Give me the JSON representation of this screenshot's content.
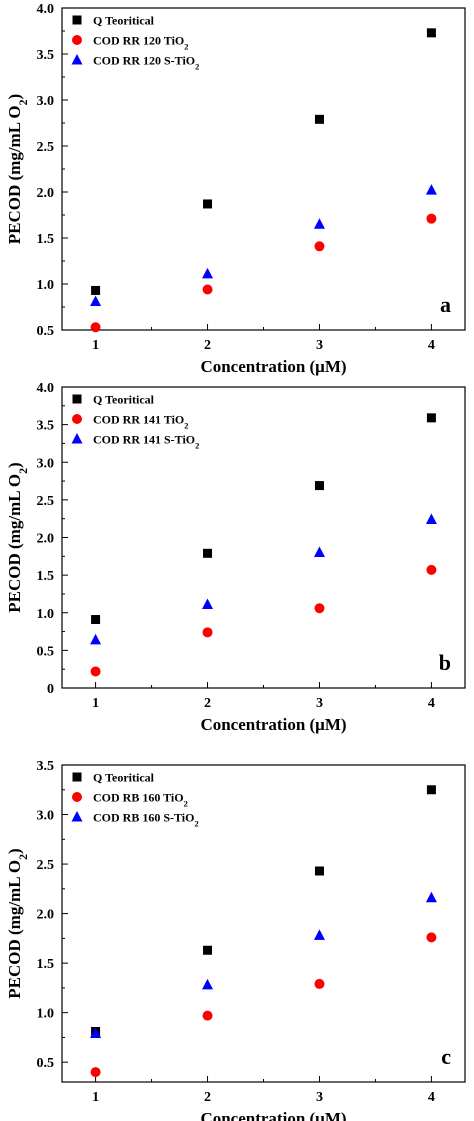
{
  "colors": {
    "q_teoritical": "#000000",
    "cod_tio2": "#ff0000",
    "cod_s_tio2": "#0000ff",
    "axes": "#000000"
  },
  "markers": {
    "q_teoritical": "square",
    "cod_tio2": "circle",
    "cod_s_tio2": "triangle"
  },
  "chart_data": [
    {
      "type": "scatter",
      "panel_label": "a",
      "xlabel": "Concentration (μM)",
      "ylabel": {
        "main": "PECOD (mg/mL O",
        "sub": "2",
        "tail": ")"
      },
      "xlim": [
        0.7,
        4.3
      ],
      "ylim": [
        0.5,
        4.0
      ],
      "xticks": [
        1,
        2,
        3,
        4
      ],
      "yticks": [
        0.5,
        1.0,
        1.5,
        2.0,
        2.5,
        3.0,
        3.5,
        4.0
      ],
      "ytick_labels": [
        "0.5",
        "1.0",
        "1.5",
        "2.0",
        "2.5",
        "3.0",
        "3.5",
        "4.0"
      ],
      "x": [
        1,
        2,
        3,
        4
      ],
      "legend_position": "top-left",
      "series": [
        {
          "name": "Q Teoritical",
          "legend": {
            "main": "Q Teoritical",
            "sub": ""
          },
          "marker": "square",
          "color": "#000000",
          "values": [
            0.93,
            1.87,
            2.79,
            3.73
          ]
        },
        {
          "name": "COD RR 120 TiO2",
          "legend": {
            "main": "COD RR 120 TiO",
            "sub": "2"
          },
          "marker": "circle",
          "color": "#ff0000",
          "values": [
            0.53,
            0.94,
            1.41,
            1.71
          ]
        },
        {
          "name": "COD RR 120 S-TiO2",
          "legend": {
            "main": "COD RR 120 S-TiO",
            "sub": "2"
          },
          "marker": "triangle",
          "color": "#0000ff",
          "values": [
            0.81,
            1.11,
            1.65,
            2.02
          ]
        }
      ]
    },
    {
      "type": "scatter",
      "panel_label": "b",
      "xlabel": "Concentration (μM)",
      "ylabel": {
        "main": "PECOD (mg/mL O",
        "sub": "2",
        "tail": ")"
      },
      "xlim": [
        0.7,
        4.3
      ],
      "ylim": [
        0.0,
        4.0
      ],
      "xticks": [
        1,
        2,
        3,
        4
      ],
      "yticks": [
        0.0,
        0.5,
        1.0,
        1.5,
        2.0,
        2.5,
        3.0,
        3.5,
        4.0
      ],
      "ytick_labels": [
        "0",
        "0.5",
        "1.0",
        "1.5",
        "2.0",
        "2.5",
        "3.0",
        "3.5",
        "4.0"
      ],
      "x": [
        1,
        2,
        3,
        4
      ],
      "legend_position": "top-left",
      "series": [
        {
          "name": "Q Teoritical",
          "legend": {
            "main": "Q Teoritical",
            "sub": ""
          },
          "marker": "square",
          "color": "#000000",
          "values": [
            0.91,
            1.79,
            2.69,
            3.59
          ]
        },
        {
          "name": "COD RR 141 TiO2",
          "legend": {
            "main": "COD RR 141 TiO",
            "sub": "2"
          },
          "marker": "circle",
          "color": "#ff0000",
          "values": [
            0.22,
            0.74,
            1.06,
            1.57
          ]
        },
        {
          "name": "COD RR 141 S-TiO2",
          "legend": {
            "main": "COD RR 141 S-TiO",
            "sub": "2"
          },
          "marker": "triangle",
          "color": "#0000ff",
          "values": [
            0.64,
            1.11,
            1.8,
            2.24
          ]
        }
      ]
    },
    {
      "type": "scatter",
      "panel_label": "c",
      "xlabel": "Concentration (μM)",
      "ylabel": {
        "main": "PECOD (mg/mL O",
        "sub": "2",
        "tail": ")"
      },
      "xlim": [
        0.7,
        4.3
      ],
      "ylim": [
        0.3,
        3.5
      ],
      "xticks": [
        1,
        2,
        3,
        4
      ],
      "yticks": [
        0.5,
        1.0,
        1.5,
        2.0,
        2.5,
        3.0,
        3.5
      ],
      "ytick_labels": [
        "0.5",
        "1.0",
        "1.5",
        "2.0",
        "2.5",
        "3.0",
        "3.5"
      ],
      "x": [
        1,
        2,
        3,
        4
      ],
      "legend_position": "top-left",
      "series": [
        {
          "name": "Q Teoritical",
          "legend": {
            "main": "Q Teoritical",
            "sub": ""
          },
          "marker": "square",
          "color": "#000000",
          "values": [
            0.81,
            1.63,
            2.43,
            3.25
          ]
        },
        {
          "name": "COD RB 160 TiO2",
          "legend": {
            "main": "COD RB 160 TiO",
            "sub": "2"
          },
          "marker": "circle",
          "color": "#ff0000",
          "values": [
            0.4,
            0.97,
            1.29,
            1.76
          ]
        },
        {
          "name": "COD RB 160 S-TiO2",
          "legend": {
            "main": "COD RB 160 S-TiO",
            "sub": "2"
          },
          "marker": "triangle",
          "color": "#0000ff",
          "values": [
            0.79,
            1.28,
            1.78,
            2.16
          ]
        }
      ]
    }
  ]
}
